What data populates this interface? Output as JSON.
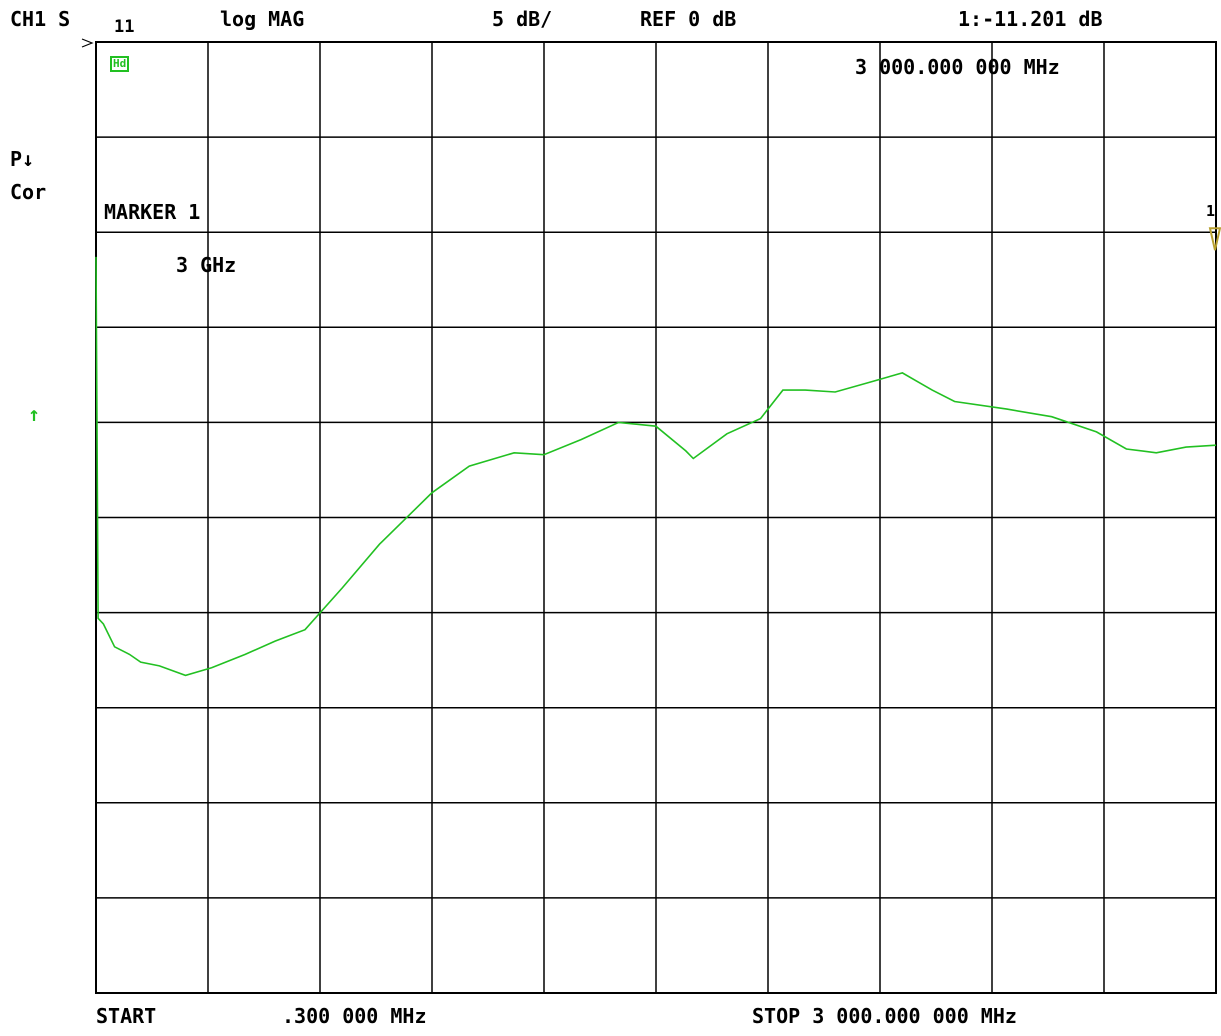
{
  "header": {
    "channel": "CH1 S",
    "param_sub": "11",
    "format": "log MAG",
    "scale": "5 dB/",
    "reference": "REF 0 dB",
    "marker_readout": "1:-11.201 dB",
    "marker_freq": "3 000.000 000 MHz"
  },
  "side": {
    "power_flag": "P↓",
    "correction": "Cor",
    "ref_arrow": "↑",
    "hold_badge": "Hd"
  },
  "annotation": {
    "marker_label": "MARKER 1",
    "marker_value": "3 GHz",
    "marker_number": "1"
  },
  "footer": {
    "start_label": "START",
    "start_value": ".300 000 MHz",
    "stop": "STOP 3 000.000 000 MHz"
  },
  "colors": {
    "trace": "#22c022",
    "grid": "#000000",
    "marker": "#b8a030",
    "background": "#ffffff"
  },
  "chart_data": {
    "type": "line",
    "title": "",
    "xlabel": "",
    "ylabel": "",
    "x_unit": "MHz",
    "y_unit": "dB",
    "xlim": [
      0.3,
      3000
    ],
    "ylim": [
      -50,
      0
    ],
    "y_divisions": 10,
    "x_divisions": 10,
    "grid": true,
    "reference_db": 0,
    "scale_db_per_div": 5,
    "series": [
      {
        "x": [
          0.3,
          6,
          20,
          50,
          90,
          120,
          170,
          240,
          310,
          400,
          480,
          560,
          660,
          760,
          900,
          1000,
          1120,
          1200,
          1300,
          1400,
          1500,
          1580,
          1600,
          1690,
          1780,
          1840,
          1900,
          1980,
          2070,
          2160,
          2240,
          2300,
          2440,
          2560,
          2680,
          2760,
          2840,
          2920,
          3000
        ],
        "y": [
          -1.3,
          -20.3,
          -20.6,
          -21.8,
          -22.2,
          -22.6,
          -22.8,
          -23.3,
          -22.9,
          -22.2,
          -21.5,
          -20.9,
          -18.7,
          -16.4,
          -13.7,
          -12.3,
          -11.6,
          -11.7,
          -10.9,
          -10.0,
          -10.2,
          -11.5,
          -11.9,
          -10.6,
          -9.8,
          -8.3,
          -8.3,
          -8.4,
          -7.9,
          -7.4,
          -8.3,
          -8.9,
          -9.3,
          -9.7,
          -10.5,
          -11.4,
          -11.6,
          -11.3,
          -11.2
        ]
      }
    ],
    "markers": [
      {
        "name": "1",
        "x": 3000,
        "y": -11.201
      }
    ]
  }
}
